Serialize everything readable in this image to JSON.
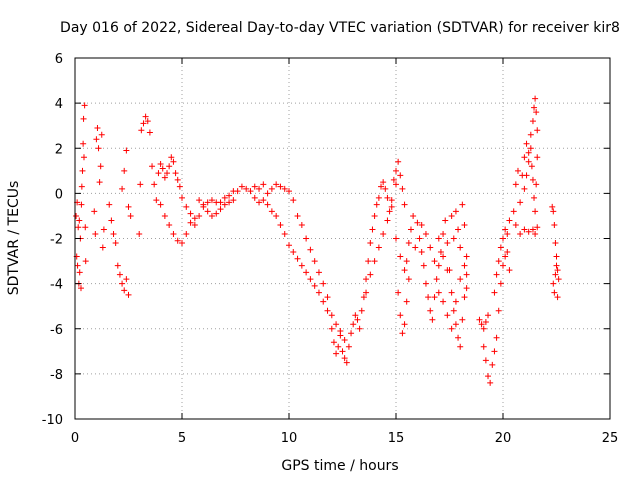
{
  "chart_data": {
    "type": "scatter",
    "title": "Day 016 of 2022, Sidereal Day-to-day VTEC variation (SDTVAR) for receiver kir8",
    "xlabel": "GPS time / hours",
    "ylabel": "SDTVAR / TECUs",
    "xlim": [
      0,
      25
    ],
    "ylim": [
      -10,
      6
    ],
    "x_ticks": [
      0,
      5,
      10,
      15,
      20,
      25
    ],
    "y_ticks": [
      -10,
      -8,
      -6,
      -4,
      -2,
      0,
      2,
      4,
      6
    ],
    "x_tick_labels": [
      "0",
      "5",
      "10",
      "15",
      "20",
      "25"
    ],
    "y_tick_labels": [
      "-10",
      "-8",
      "-6",
      "-4",
      "-2",
      "0",
      "2",
      "4",
      "6"
    ],
    "grid": true,
    "marker": "+",
    "color": "#ff0000",
    "series": [
      {
        "name": "SDTVAR",
        "points": [
          [
            0.05,
            -1.0
          ],
          [
            0.08,
            -2.8
          ],
          [
            0.1,
            -0.4
          ],
          [
            0.12,
            -3.2
          ],
          [
            0.15,
            -1.5
          ],
          [
            0.18,
            -4.0
          ],
          [
            0.2,
            -1.2
          ],
          [
            0.22,
            -3.5
          ],
          [
            0.25,
            -2.0
          ],
          [
            0.28,
            -4.2
          ],
          [
            0.3,
            -0.5
          ],
          [
            0.32,
            0.3
          ],
          [
            0.35,
            1.0
          ],
          [
            0.38,
            2.2
          ],
          [
            0.4,
            3.3
          ],
          [
            0.42,
            1.6
          ],
          [
            0.45,
            3.9
          ],
          [
            0.48,
            -1.5
          ],
          [
            0.5,
            -3.0
          ],
          [
            0.9,
            -0.8
          ],
          [
            0.95,
            -1.8
          ],
          [
            1.0,
            2.4
          ],
          [
            1.05,
            2.9
          ],
          [
            1.1,
            2.0
          ],
          [
            1.15,
            0.5
          ],
          [
            1.2,
            1.2
          ],
          [
            1.25,
            2.6
          ],
          [
            1.3,
            -2.4
          ],
          [
            1.35,
            -1.6
          ],
          [
            1.6,
            -0.5
          ],
          [
            1.7,
            -1.2
          ],
          [
            1.8,
            -1.8
          ],
          [
            1.9,
            -2.2
          ],
          [
            2.0,
            -3.2
          ],
          [
            2.1,
            -3.6
          ],
          [
            2.2,
            -4.0
          ],
          [
            2.3,
            -4.3
          ],
          [
            2.4,
            -3.8
          ],
          [
            2.5,
            -4.5
          ],
          [
            2.2,
            0.2
          ],
          [
            2.3,
            1.0
          ],
          [
            2.4,
            1.9
          ],
          [
            2.5,
            -0.6
          ],
          [
            2.6,
            -1.0
          ],
          [
            3.0,
            -1.8
          ],
          [
            3.05,
            0.4
          ],
          [
            3.1,
            2.8
          ],
          [
            3.2,
            3.1
          ],
          [
            3.3,
            3.4
          ],
          [
            3.4,
            3.2
          ],
          [
            3.5,
            2.7
          ],
          [
            3.6,
            1.2
          ],
          [
            3.7,
            0.4
          ],
          [
            3.8,
            -0.3
          ],
          [
            3.9,
            0.9
          ],
          [
            4.0,
            1.3
          ],
          [
            4.1,
            1.1
          ],
          [
            4.2,
            0.7
          ],
          [
            4.3,
            0.9
          ],
          [
            4.4,
            1.2
          ],
          [
            4.5,
            1.6
          ],
          [
            4.6,
            1.4
          ],
          [
            4.7,
            0.9
          ],
          [
            4.8,
            0.6
          ],
          [
            4.9,
            0.3
          ],
          [
            4.0,
            -0.5
          ],
          [
            4.2,
            -1.0
          ],
          [
            4.4,
            -1.4
          ],
          [
            4.6,
            -1.8
          ],
          [
            4.8,
            -2.1
          ],
          [
            5.0,
            -2.2
          ],
          [
            5.2,
            -1.8
          ],
          [
            5.4,
            -1.3
          ],
          [
            5.6,
            -1.1
          ],
          [
            5.0,
            -0.2
          ],
          [
            5.2,
            -0.6
          ],
          [
            5.4,
            -0.9
          ],
          [
            5.6,
            -1.4
          ],
          [
            5.8,
            -1.0
          ],
          [
            6.0,
            -0.6
          ],
          [
            6.2,
            -0.8
          ],
          [
            6.4,
            -1.0
          ],
          [
            6.6,
            -0.9
          ],
          [
            5.8,
            -0.3
          ],
          [
            6.0,
            -0.5
          ],
          [
            6.2,
            -0.4
          ],
          [
            6.4,
            -0.3
          ],
          [
            6.6,
            -0.4
          ],
          [
            6.8,
            -0.4
          ],
          [
            7.0,
            -0.2
          ],
          [
            7.2,
            -0.1
          ],
          [
            7.4,
            0.1
          ],
          [
            6.8,
            -0.7
          ],
          [
            7.0,
            -0.5
          ],
          [
            7.2,
            -0.4
          ],
          [
            7.4,
            -0.3
          ],
          [
            7.6,
            0.1
          ],
          [
            7.8,
            0.3
          ],
          [
            8.0,
            0.2
          ],
          [
            8.2,
            0.1
          ],
          [
            8.4,
            -0.2
          ],
          [
            8.6,
            -0.4
          ],
          [
            8.8,
            -0.3
          ],
          [
            9.0,
            0.0
          ],
          [
            9.2,
            0.2
          ],
          [
            9.4,
            0.4
          ],
          [
            9.6,
            0.3
          ],
          [
            9.8,
            0.2
          ],
          [
            10.0,
            0.1
          ],
          [
            10.2,
            -0.3
          ],
          [
            8.4,
            0.3
          ],
          [
            8.6,
            0.2
          ],
          [
            8.8,
            0.4
          ],
          [
            9.0,
            -0.5
          ],
          [
            9.2,
            -0.8
          ],
          [
            9.4,
            -1.0
          ],
          [
            9.6,
            -1.4
          ],
          [
            9.8,
            -1.8
          ],
          [
            10.0,
            -2.3
          ],
          [
            10.2,
            -2.6
          ],
          [
            10.4,
            -2.9
          ],
          [
            10.6,
            -3.2
          ],
          [
            10.8,
            -3.5
          ],
          [
            11.0,
            -3.8
          ],
          [
            11.2,
            -4.1
          ],
          [
            11.4,
            -4.4
          ],
          [
            11.6,
            -4.8
          ],
          [
            10.4,
            -1.0
          ],
          [
            10.6,
            -1.4
          ],
          [
            10.8,
            -2.0
          ],
          [
            11.0,
            -2.5
          ],
          [
            11.2,
            -3.0
          ],
          [
            11.4,
            -3.5
          ],
          [
            11.6,
            -4.0
          ],
          [
            11.8,
            -4.6
          ],
          [
            11.8,
            -5.2
          ],
          [
            12.0,
            -6.0
          ],
          [
            12.1,
            -6.6
          ],
          [
            12.2,
            -7.1
          ],
          [
            12.3,
            -6.8
          ],
          [
            12.4,
            -6.3
          ],
          [
            12.5,
            -7.0
          ],
          [
            12.6,
            -6.5
          ],
          [
            12.0,
            -5.4
          ],
          [
            12.2,
            -5.8
          ],
          [
            12.4,
            -6.1
          ],
          [
            12.6,
            -7.3
          ],
          [
            12.7,
            -7.5
          ],
          [
            12.8,
            -6.8
          ],
          [
            12.9,
            -6.2
          ],
          [
            13.0,
            -5.8
          ],
          [
            13.1,
            -5.4
          ],
          [
            13.2,
            -5.6
          ],
          [
            13.3,
            -6.0
          ],
          [
            13.4,
            -5.2
          ],
          [
            13.5,
            -4.6
          ],
          [
            13.6,
            -3.8
          ],
          [
            13.7,
            -3.0
          ],
          [
            13.8,
            -2.2
          ],
          [
            13.9,
            -1.6
          ],
          [
            14.0,
            -1.0
          ],
          [
            14.1,
            -0.5
          ],
          [
            14.2,
            -0.2
          ],
          [
            14.3,
            0.3
          ],
          [
            14.4,
            0.5
          ],
          [
            14.5,
            0.2
          ],
          [
            14.6,
            -0.2
          ],
          [
            13.6,
            -4.4
          ],
          [
            13.8,
            -3.6
          ],
          [
            14.0,
            -3.0
          ],
          [
            14.2,
            -2.4
          ],
          [
            14.4,
            -1.8
          ],
          [
            14.6,
            -1.2
          ],
          [
            14.8,
            -0.6
          ],
          [
            15.0,
            0.4
          ],
          [
            14.7,
            -0.8
          ],
          [
            14.8,
            -0.3
          ],
          [
            14.9,
            0.6
          ],
          [
            15.0,
            1.0
          ],
          [
            15.1,
            1.4
          ],
          [
            15.2,
            0.8
          ],
          [
            15.3,
            0.2
          ],
          [
            15.4,
            -0.5
          ],
          [
            15.0,
            -2.0
          ],
          [
            15.2,
            -2.8
          ],
          [
            15.4,
            -3.4
          ],
          [
            15.5,
            -3.0
          ],
          [
            15.6,
            -2.2
          ],
          [
            15.7,
            -1.6
          ],
          [
            15.8,
            -1.0
          ],
          [
            15.9,
            -2.4
          ],
          [
            15.1,
            -4.4
          ],
          [
            15.2,
            -5.4
          ],
          [
            15.3,
            -6.2
          ],
          [
            15.4,
            -5.8
          ],
          [
            15.5,
            -4.8
          ],
          [
            15.6,
            -3.8
          ],
          [
            16.0,
            -1.3
          ],
          [
            16.1,
            -2.0
          ],
          [
            16.2,
            -2.6
          ],
          [
            16.3,
            -3.2
          ],
          [
            16.4,
            -4.0
          ],
          [
            16.5,
            -4.6
          ],
          [
            16.6,
            -5.2
          ],
          [
            16.7,
            -5.6
          ],
          [
            16.8,
            -4.6
          ],
          [
            16.9,
            -3.8
          ],
          [
            17.0,
            -3.2
          ],
          [
            17.1,
            -2.6
          ],
          [
            17.2,
            -1.8
          ],
          [
            17.3,
            -1.2
          ],
          [
            17.4,
            -2.2
          ],
          [
            17.5,
            -3.4
          ],
          [
            17.6,
            -4.4
          ],
          [
            17.7,
            -5.2
          ],
          [
            17.8,
            -5.8
          ],
          [
            17.9,
            -6.4
          ],
          [
            18.0,
            -6.8
          ],
          [
            18.1,
            -5.6
          ],
          [
            18.2,
            -4.6
          ],
          [
            18.3,
            -3.6
          ],
          [
            17.0,
            -4.4
          ],
          [
            17.2,
            -4.8
          ],
          [
            17.4,
            -5.4
          ],
          [
            17.6,
            -6.0
          ],
          [
            17.8,
            -4.8
          ],
          [
            18.0,
            -3.8
          ],
          [
            18.2,
            -3.2
          ],
          [
            18.3,
            -4.2
          ],
          [
            16.2,
            -1.4
          ],
          [
            16.4,
            -1.8
          ],
          [
            16.6,
            -2.4
          ],
          [
            16.8,
            -3.0
          ],
          [
            17.0,
            -2.0
          ],
          [
            17.2,
            -2.8
          ],
          [
            17.4,
            -3.4
          ],
          [
            17.6,
            -1.0
          ],
          [
            17.7,
            -2.0
          ],
          [
            17.8,
            -0.8
          ],
          [
            17.9,
            -1.6
          ],
          [
            18.0,
            -2.4
          ],
          [
            18.1,
            -0.5
          ],
          [
            18.2,
            -1.4
          ],
          [
            18.3,
            -2.8
          ],
          [
            18.9,
            -5.6
          ],
          [
            19.0,
            -5.8
          ],
          [
            19.1,
            -6.0
          ],
          [
            19.2,
            -5.7
          ],
          [
            19.3,
            -5.4
          ],
          [
            19.1,
            -6.8
          ],
          [
            19.2,
            -7.4
          ],
          [
            19.3,
            -8.1
          ],
          [
            19.4,
            -8.4
          ],
          [
            19.5,
            -7.6
          ],
          [
            19.6,
            -7.0
          ],
          [
            19.7,
            -6.4
          ],
          [
            19.8,
            -5.2
          ],
          [
            19.6,
            -4.4
          ],
          [
            19.7,
            -3.6
          ],
          [
            19.8,
            -3.0
          ],
          [
            19.9,
            -2.4
          ],
          [
            20.0,
            -2.0
          ],
          [
            20.1,
            -1.6
          ],
          [
            20.2,
            -2.6
          ],
          [
            20.3,
            -3.4
          ],
          [
            19.9,
            -4.0
          ],
          [
            20.0,
            -3.2
          ],
          [
            20.1,
            -2.8
          ],
          [
            20.2,
            -1.8
          ],
          [
            20.3,
            -1.2
          ],
          [
            20.5,
            -0.8
          ],
          [
            20.6,
            0.4
          ],
          [
            20.7,
            1.0
          ],
          [
            20.8,
            -0.4
          ],
          [
            20.9,
            0.8
          ],
          [
            21.0,
            1.6
          ],
          [
            21.1,
            2.2
          ],
          [
            21.2,
            1.4
          ],
          [
            20.6,
            -1.4
          ],
          [
            20.8,
            -1.8
          ],
          [
            21.0,
            -1.6
          ],
          [
            21.2,
            -1.7
          ],
          [
            21.4,
            -1.6
          ],
          [
            21.5,
            -1.8
          ],
          [
            21.6,
            -1.5
          ],
          [
            21.0,
            0.2
          ],
          [
            21.1,
            0.8
          ],
          [
            21.2,
            1.8
          ],
          [
            21.3,
            2.6
          ],
          [
            21.4,
            3.2
          ],
          [
            21.45,
            3.8
          ],
          [
            21.5,
            4.2
          ],
          [
            21.55,
            3.6
          ],
          [
            21.6,
            2.8
          ],
          [
            21.3,
            2.0
          ],
          [
            21.35,
            1.2
          ],
          [
            21.4,
            0.6
          ],
          [
            21.45,
            -0.2
          ],
          [
            21.5,
            -0.8
          ],
          [
            21.55,
            0.4
          ],
          [
            21.6,
            1.6
          ],
          [
            22.3,
            -0.6
          ],
          [
            22.35,
            -0.8
          ],
          [
            22.4,
            -1.4
          ],
          [
            22.45,
            -2.2
          ],
          [
            22.5,
            -2.8
          ],
          [
            22.55,
            -3.4
          ],
          [
            22.6,
            -3.8
          ],
          [
            22.35,
            -4.0
          ],
          [
            22.4,
            -4.4
          ],
          [
            22.45,
            -3.6
          ],
          [
            22.5,
            -3.2
          ],
          [
            22.55,
            -4.6
          ]
        ]
      }
    ]
  }
}
